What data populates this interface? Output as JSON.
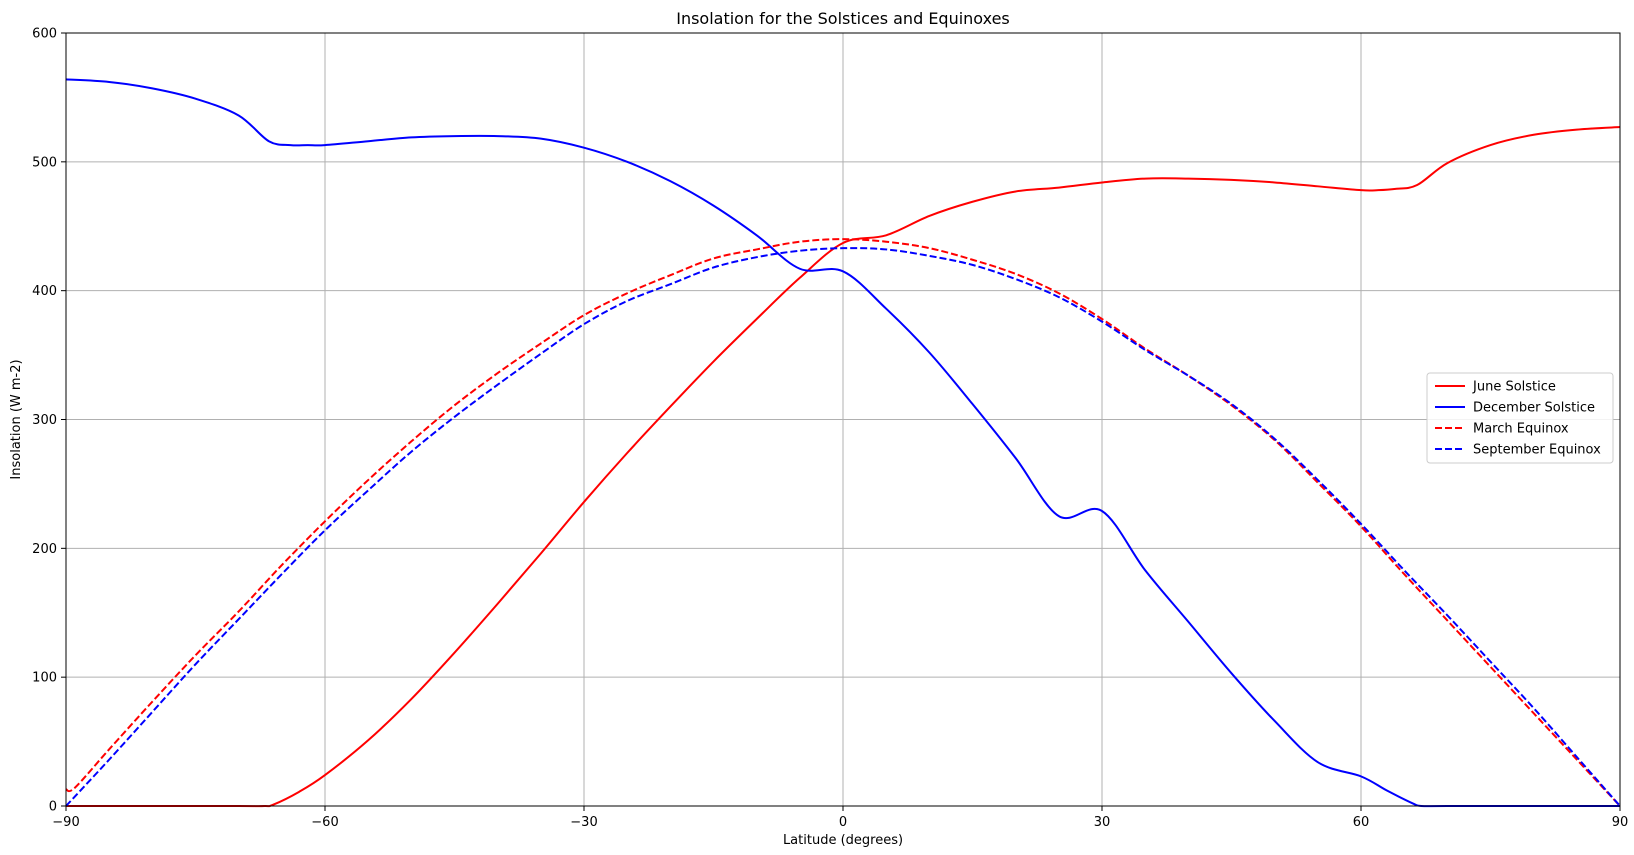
{
  "chart_data": {
    "type": "line",
    "title": "Insolation for the Solstices and Equinoxes",
    "xlabel": "Latitude (degrees)",
    "ylabel": "Insolation (W m-2)",
    "xlim": [
      -90,
      90
    ],
    "ylim": [
      0,
      600
    ],
    "xticks": [
      -90,
      -60,
      -30,
      0,
      30,
      60,
      90
    ],
    "xtick_labels": [
      "−90",
      "−60",
      "−30",
      "0",
      "30",
      "60",
      "90"
    ],
    "yticks": [
      0,
      100,
      200,
      300,
      400,
      500,
      600
    ],
    "ytick_labels": [
      "0",
      "100",
      "200",
      "300",
      "400",
      "500",
      "600"
    ],
    "grid": true,
    "legend_position": "center-right",
    "series": [
      {
        "name": "June Solstice",
        "color": "#ff0000",
        "style": "solid",
        "x": [
          -90,
          -80,
          -70,
          -67,
          -66,
          -63,
          -60,
          -55,
          -50,
          -45,
          -40,
          -35,
          -30,
          -25,
          -20,
          -15,
          -10,
          -5,
          0,
          5,
          10,
          15,
          20,
          25,
          30,
          35,
          40,
          45,
          50,
          55,
          60,
          62,
          64,
          66.5,
          70,
          75,
          80,
          85,
          90
        ],
        "y": [
          0,
          0,
          0,
          0,
          1,
          11,
          24,
          51,
          83,
          119,
          157,
          196,
          236,
          274,
          310,
          345,
          378,
          410,
          437,
          443,
          458,
          469,
          477,
          480,
          484,
          487,
          487,
          486,
          484,
          481,
          478,
          478,
          479,
          482,
          499,
          513,
          521,
          525,
          527
        ]
      },
      {
        "name": "December Solstice",
        "color": "#0000ff",
        "style": "solid",
        "x": [
          -90,
          -85,
          -80,
          -75,
          -70,
          -66.5,
          -64,
          -62,
          -60,
          -55,
          -50,
          -45,
          -40,
          -35,
          -30,
          -25,
          -20,
          -15,
          -10,
          -5,
          0,
          5,
          10,
          15,
          20,
          25,
          30,
          35,
          40,
          45,
          50,
          55,
          60,
          63,
          66,
          67,
          70,
          80,
          90
        ],
        "y": [
          564,
          562,
          557,
          549,
          536,
          516,
          513,
          513,
          513,
          516,
          519,
          520,
          520,
          518,
          511,
          500,
          485,
          466,
          443,
          417,
          415,
          386,
          352,
          312,
          270,
          225,
          229,
          183,
          143,
          103,
          66,
          34,
          23,
          12,
          2,
          0,
          0,
          0,
          0
        ]
      },
      {
        "name": "March Equinox",
        "color": "#ff0000",
        "style": "dashed",
        "x": [
          -90,
          -89,
          -85,
          -80,
          -75,
          -70,
          -65,
          -60,
          -55,
          -50,
          -45,
          -40,
          -35,
          -30,
          -25,
          -20,
          -15,
          -10,
          -5,
          0,
          5,
          10,
          15,
          20,
          25,
          30,
          35,
          40,
          45,
          50,
          55,
          60,
          65,
          70,
          75,
          80,
          85,
          90
        ],
        "y": [
          13,
          14,
          44,
          81,
          117,
          151,
          187,
          221,
          253,
          283,
          311,
          336,
          359,
          381,
          398,
          412,
          425,
          432,
          438,
          440,
          438,
          433,
          424,
          413,
          398,
          378,
          355,
          334,
          311,
          284,
          251,
          217,
          180,
          144,
          108,
          72,
          36,
          0
        ]
      },
      {
        "name": "September Equinox",
        "color": "#0000ff",
        "style": "dashed",
        "x": [
          -90,
          -85,
          -80,
          -75,
          -70,
          -65,
          -60,
          -55,
          -50,
          -45,
          -40,
          -35,
          -30,
          -25,
          -20,
          -15,
          -10,
          -5,
          0,
          5,
          10,
          15,
          20,
          25,
          30,
          35,
          40,
          45,
          50,
          55,
          60,
          65,
          70,
          75,
          80,
          85,
          90
        ],
        "y": [
          0,
          36,
          73,
          110,
          145,
          180,
          214,
          245,
          275,
          302,
          327,
          351,
          374,
          392,
          405,
          418,
          426,
          431,
          433,
          432,
          427,
          420,
          409,
          395,
          376,
          354,
          334,
          312,
          285,
          253,
          219,
          183,
          148,
          112,
          76,
          38,
          0
        ]
      }
    ]
  }
}
